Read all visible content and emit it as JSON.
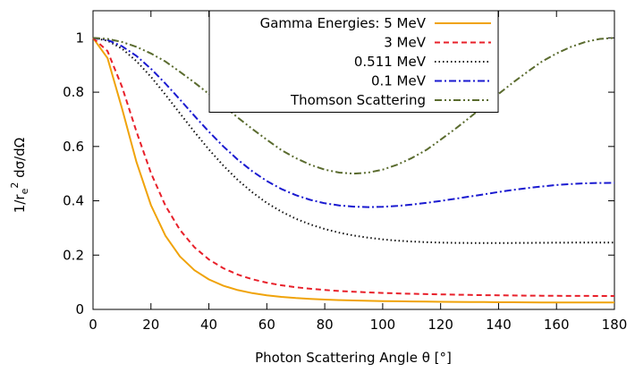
{
  "chart_data": {
    "type": "line",
    "title": "",
    "xlabel": "Photon Scattering Angle θ [°]",
    "ylabel_parts": {
      "prefix": "1/r",
      "sub": "e",
      "sup": "2",
      "suffix": " dσ/dΩ"
    },
    "xlim": [
      0,
      180
    ],
    "ylim": [
      0,
      1.1
    ],
    "xticks": [
      0,
      20,
      40,
      60,
      80,
      100,
      120,
      140,
      160,
      180
    ],
    "yticks": [
      0,
      0.2,
      0.4,
      0.6,
      0.8,
      1
    ],
    "ytick_labels": [
      "0",
      "0.2",
      "0.4",
      "0.6",
      "0.8",
      "1"
    ],
    "grid": false,
    "legend_position": "top-right (inside)",
    "x": [
      0,
      5,
      10,
      15,
      20,
      25,
      30,
      35,
      40,
      45,
      50,
      55,
      60,
      65,
      70,
      75,
      80,
      85,
      90,
      95,
      100,
      105,
      110,
      115,
      120,
      125,
      130,
      135,
      140,
      145,
      150,
      155,
      160,
      165,
      170,
      175,
      180
    ],
    "series": [
      {
        "name": "Gamma Energies: 5 MeV",
        "color": "#f0a30a",
        "dash": "solid",
        "values": [
          1.0,
          0.9257,
          0.7404,
          0.5428,
          0.3837,
          0.271,
          0.195,
          0.1443,
          0.1102,
          0.087,
          0.0711,
          0.0599,
          0.0519,
          0.0462,
          0.0419,
          0.0387,
          0.0363,
          0.0344,
          0.0329,
          0.0317,
          0.0307,
          0.0299,
          0.0292,
          0.0286,
          0.0281,
          0.0276,
          0.0272,
          0.0269,
          0.0265,
          0.0263,
          0.026,
          0.0258,
          0.0256,
          0.0255,
          0.0254,
          0.0254,
          0.0254
        ]
      },
      {
        "name": "3 MeV",
        "color": "#e8202a",
        "dash": "dashed",
        "values": [
          1.0,
          0.9516,
          0.8202,
          0.6547,
          0.5021,
          0.3817,
          0.2927,
          0.2289,
          0.1837,
          0.1514,
          0.1281,
          0.111,
          0.0984,
          0.0889,
          0.0816,
          0.076,
          0.0716,
          0.068,
          0.0651,
          0.0627,
          0.0607,
          0.059,
          0.0576,
          0.0563,
          0.0552,
          0.0542,
          0.0533,
          0.0525,
          0.0519,
          0.0513,
          0.0508,
          0.0504,
          0.0501,
          0.0498,
          0.0496,
          0.0495,
          0.0494
        ]
      },
      {
        "name": "0.511 MeV",
        "color": "#111111",
        "dash": "dotted",
        "values": [
          1.0,
          0.9896,
          0.9603,
          0.9144,
          0.8565,
          0.7908,
          0.7219,
          0.6537,
          0.5888,
          0.5294,
          0.4767,
          0.431,
          0.3924,
          0.3603,
          0.3341,
          0.3129,
          0.296,
          0.2826,
          0.2722,
          0.2641,
          0.258,
          0.2533,
          0.25,
          0.2476,
          0.2461,
          0.2451,
          0.2446,
          0.2444,
          0.2445,
          0.2447,
          0.245,
          0.2453,
          0.2456,
          0.2459,
          0.2461,
          0.2462,
          0.2463
        ]
      },
      {
        "name": "0.1 MeV",
        "color": "#1a1ad0",
        "dash": "dashdot",
        "values": [
          1.0,
          0.9922,
          0.9693,
          0.9332,
          0.8863,
          0.8317,
          0.7728,
          0.7128,
          0.6545,
          0.6002,
          0.5513,
          0.5088,
          0.473,
          0.4437,
          0.4208,
          0.4034,
          0.391,
          0.3829,
          0.3784,
          0.3769,
          0.3779,
          0.3811,
          0.3859,
          0.3922,
          0.3994,
          0.4073,
          0.4156,
          0.424,
          0.4323,
          0.44,
          0.4469,
          0.453,
          0.458,
          0.4618,
          0.4643,
          0.4657,
          0.4661
        ]
      },
      {
        "name": "Thomson Scattering",
        "color": "#5a6b2e",
        "dash": "dashdotdot",
        "values": [
          1.0,
          0.9962,
          0.9851,
          0.967,
          0.9427,
          0.913,
          0.875,
          0.8355,
          0.7934,
          0.75,
          0.7066,
          0.6645,
          0.625,
          0.587,
          0.5573,
          0.533,
          0.5149,
          0.5038,
          0.5,
          0.5038,
          0.5149,
          0.533,
          0.5573,
          0.587,
          0.625,
          0.6645,
          0.7066,
          0.75,
          0.7934,
          0.8355,
          0.875,
          0.913,
          0.9427,
          0.967,
          0.9851,
          0.9962,
          1.0
        ]
      }
    ]
  }
}
